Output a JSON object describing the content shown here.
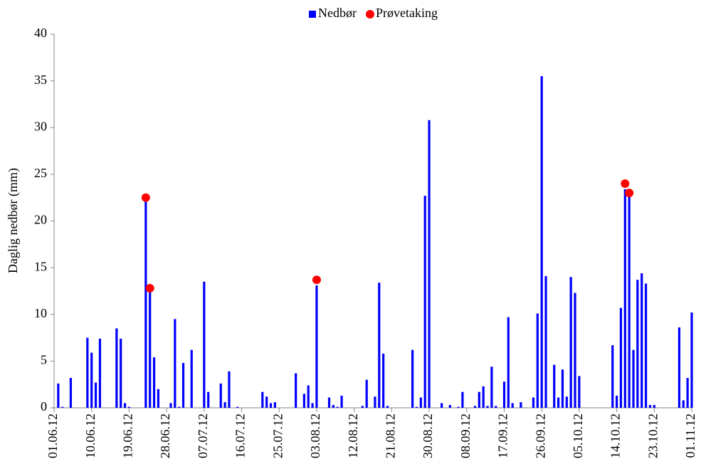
{
  "chart_data": {
    "type": "bar",
    "ylabel": "Daglig nedbør (mm)",
    "categories": [
      "01.06.12",
      null,
      null,
      null,
      null,
      null,
      null,
      null,
      null,
      "10.06.12",
      null,
      null,
      null,
      null,
      null,
      null,
      null,
      null,
      "19.06.12",
      null,
      null,
      null,
      null,
      null,
      null,
      null,
      null,
      "28.06.12",
      null,
      null,
      null,
      null,
      null,
      null,
      null,
      null,
      "07.07.12",
      null,
      null,
      null,
      null,
      null,
      null,
      null,
      null,
      "16.07.12",
      null,
      null,
      null,
      null,
      null,
      null,
      null,
      null,
      "25.07.12",
      null,
      null,
      null,
      null,
      null,
      null,
      null,
      null,
      "03.08.12",
      null,
      null,
      null,
      null,
      null,
      null,
      null,
      null,
      "12.08.12",
      null,
      null,
      null,
      null,
      null,
      null,
      null,
      null,
      "21.08.12",
      null,
      null,
      null,
      null,
      null,
      null,
      null,
      null,
      "30.08.12",
      null,
      null,
      null,
      null,
      null,
      null,
      null,
      null,
      "08.09.12",
      null,
      null,
      null,
      null,
      null,
      null,
      null,
      null,
      "17.09.12",
      null,
      null,
      null,
      null,
      null,
      null,
      null,
      null,
      "26.09.12",
      null,
      null,
      null,
      null,
      null,
      null,
      null,
      null,
      "05.10.12",
      null,
      null,
      null,
      null,
      null,
      null,
      null,
      null,
      "14.10.12",
      null,
      null,
      null,
      null,
      null,
      null,
      null,
      null,
      "23.10.12",
      null,
      null,
      null,
      null,
      null,
      null,
      null,
      null,
      "01.11.12"
    ],
    "series": [
      {
        "name": "Nedbør",
        "color": "#0000ff",
        "values": [
          0,
          2.6,
          0.1,
          0,
          3.2,
          0,
          0,
          0,
          7.5,
          5.9,
          2.7,
          7.4,
          0,
          0,
          0,
          8.5,
          7.4,
          0.5,
          0.1,
          0,
          0,
          0,
          22.5,
          12.5,
          5.4,
          2.0,
          0,
          0,
          0.5,
          9.5,
          0.1,
          4.8,
          0,
          6.2,
          0,
          0,
          13.5,
          1.7,
          0,
          0,
          2.6,
          0.6,
          3.9,
          0,
          0.1,
          0,
          0,
          0,
          0,
          0,
          1.7,
          1.2,
          0.5,
          0.6,
          0,
          0,
          0,
          0,
          3.7,
          0,
          1.5,
          2.4,
          0.5,
          13.1,
          0,
          0,
          1.1,
          0.3,
          0.1,
          1.3,
          0,
          0,
          0,
          0,
          0.2,
          3.0,
          0,
          1.2,
          13.4,
          5.8,
          0.2,
          0,
          0,
          0,
          0,
          0,
          6.2,
          0.1,
          1.1,
          22.7,
          30.8,
          0,
          0,
          0.5,
          0,
          0.3,
          0,
          0.1,
          1.7,
          0,
          0,
          0.2,
          1.7,
          2.3,
          0.2,
          4.4,
          0.2,
          0,
          2.8,
          9.7,
          0.5,
          0,
          0.6,
          0,
          0,
          1.1,
          10.1,
          35.5,
          14.1,
          0,
          4.6,
          1.1,
          4.1,
          1.2,
          14.0,
          12.3,
          3.4,
          0,
          0,
          0,
          0,
          0,
          0,
          0,
          6.7,
          1.3,
          10.7,
          23.4,
          23.0,
          6.2,
          13.7,
          14.4,
          13.3,
          0.3,
          0.3,
          0,
          0,
          0,
          0,
          0,
          8.6,
          0.8,
          3.2,
          10.2
        ]
      },
      {
        "name": "Prøvetaking",
        "color": "#ff0000",
        "type": "scatter",
        "values": [
          null,
          null,
          null,
          null,
          null,
          null,
          null,
          null,
          null,
          null,
          null,
          null,
          null,
          null,
          null,
          null,
          null,
          null,
          null,
          null,
          null,
          null,
          22.5,
          12.8,
          null,
          null,
          null,
          null,
          null,
          null,
          null,
          null,
          null,
          null,
          null,
          null,
          null,
          null,
          null,
          null,
          null,
          null,
          null,
          null,
          null,
          null,
          null,
          null,
          null,
          null,
          null,
          null,
          null,
          null,
          null,
          null,
          null,
          null,
          null,
          null,
          null,
          null,
          null,
          13.7,
          null,
          null,
          null,
          null,
          null,
          null,
          null,
          null,
          null,
          null,
          null,
          null,
          null,
          null,
          null,
          null,
          null,
          null,
          null,
          null,
          null,
          null,
          null,
          null,
          null,
          null,
          null,
          null,
          null,
          null,
          null,
          null,
          null,
          null,
          null,
          null,
          null,
          null,
          null,
          null,
          null,
          null,
          null,
          null,
          null,
          null,
          null,
          null,
          null,
          null,
          null,
          null,
          null,
          null,
          null,
          null,
          null,
          null,
          null,
          null,
          null,
          null,
          null,
          null,
          null,
          null,
          null,
          null,
          null,
          null,
          null,
          null,
          null,
          24.0,
          23.0,
          null,
          null,
          null,
          null,
          null,
          null,
          null,
          null,
          null,
          null,
          null,
          null,
          null,
          null,
          null
        ]
      }
    ],
    "ylim": [
      0,
      40
    ],
    "yticks": [
      0,
      5,
      10,
      15,
      20,
      25,
      30,
      35,
      40
    ],
    "grid": false,
    "legend": "top"
  }
}
